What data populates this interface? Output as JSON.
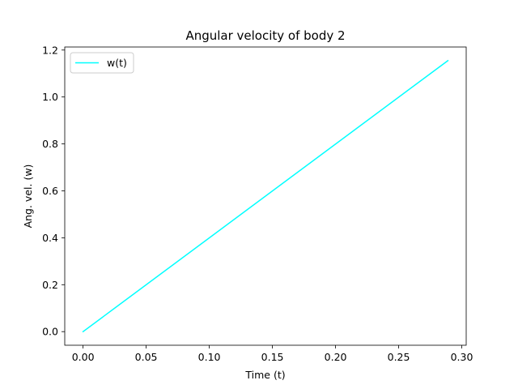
{
  "chart_data": {
    "type": "line",
    "title": "Angular velocity of body 2",
    "xlabel": "Time (t)",
    "ylabel": "Ang. vel. (w)",
    "xlim": [
      -0.0145,
      0.3035
    ],
    "ylim": [
      -0.058,
      1.213
    ],
    "xticks": [
      0.0,
      0.05,
      0.1,
      0.15,
      0.2,
      0.25,
      0.3
    ],
    "xtick_labels": [
      "0.00",
      "0.05",
      "0.10",
      "0.15",
      "0.20",
      "0.25",
      "0.30"
    ],
    "yticks": [
      0.0,
      0.2,
      0.4,
      0.6,
      0.8,
      1.0,
      1.2
    ],
    "ytick_labels": [
      "0.0",
      "0.2",
      "0.4",
      "0.6",
      "0.8",
      "1.0",
      "1.2"
    ],
    "grid": false,
    "legend": "top-left",
    "series": [
      {
        "name": "w(t)",
        "color": "#00ffff",
        "x": [
          0.0,
          0.289
        ],
        "y": [
          0.0,
          1.155
        ]
      }
    ]
  }
}
